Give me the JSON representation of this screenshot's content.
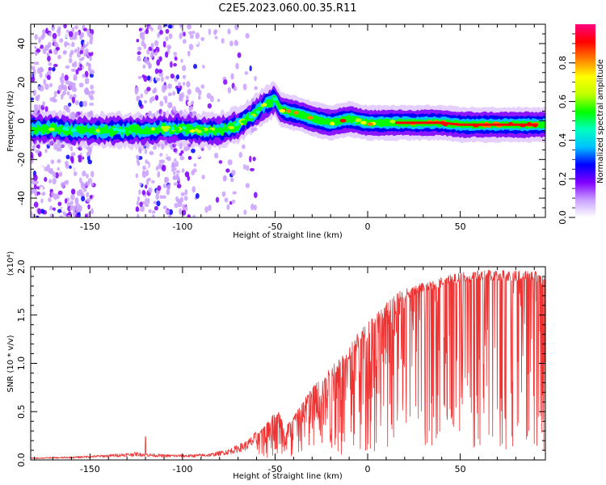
{
  "title": "C2E5.2023.060.00.35.R11",
  "chart_data": [
    {
      "type": "heatmap",
      "xlabel": "Height of straight line (km)",
      "ylabel": "Frequency (Hz)",
      "xlim": [
        -182,
        96
      ],
      "ylim": [
        -50,
        50
      ],
      "x_ticks": [
        -150,
        -100,
        -50,
        0,
        50
      ],
      "y_ticks": [
        -40,
        -20,
        0,
        20,
        40
      ],
      "ridge": {
        "x": [
          -182,
          -170,
          -160,
          -150,
          -140,
          -130,
          -120,
          -110,
          -100,
          -90,
          -80,
          -70,
          -62,
          -56,
          -50,
          -47,
          -44,
          -40,
          -35,
          -30,
          -25,
          -20,
          -15,
          -10,
          -5,
          0,
          10,
          20,
          30,
          40,
          50,
          60,
          70,
          80,
          90,
          96
        ],
        "y": [
          -4,
          -4,
          -5,
          -5,
          -5,
          -5,
          -5,
          -4,
          -4,
          -5,
          -5,
          -2,
          3,
          8,
          11,
          6,
          5,
          4,
          3,
          1,
          0,
          -1,
          0,
          1,
          0,
          -1,
          -1,
          -1,
          -1,
          -1,
          -2,
          -2,
          -2,
          -2,
          -2,
          -2
        ]
      },
      "colorbar": {
        "label": "Normalized spectral amplitude",
        "range": [
          0,
          1
        ],
        "ticks": [
          "0.0",
          "0.2",
          "0.4",
          "0.6",
          "0.8"
        ],
        "colors": [
          "#ffffff",
          "#c9a0ff",
          "#8000ff",
          "#0000ff",
          "#00c0ff",
          "#00ffc0",
          "#00ff00",
          "#c0ff00",
          "#ffff00",
          "#ff8000",
          "#ff0000",
          "#ff0080"
        ]
      }
    },
    {
      "type": "line",
      "xlabel": "Height of straight line (km)",
      "ylabel": "SNR (10 * v/v)",
      "y_multiplier": "(x10⁴)",
      "xlim": [
        -182,
        96
      ],
      "ylim": [
        0,
        2.0
      ],
      "x_ticks": [
        -150,
        -100,
        -50,
        0,
        50
      ],
      "y_ticks": [
        "0.0",
        "0.5",
        "1.0",
        "1.5",
        "2.0"
      ],
      "color": "#ee3333",
      "envelope": {
        "x": [
          -182,
          -160,
          -140,
          -125,
          -110,
          -95,
          -85,
          -75,
          -65,
          -58,
          -52,
          -48,
          -45,
          -40,
          -35,
          -30,
          -25,
          -20,
          -15,
          -10,
          -5,
          0,
          5,
          10,
          15,
          20,
          30,
          40,
          50,
          60,
          70,
          80,
          90,
          96
        ],
        "y": [
          0.02,
          0.03,
          0.05,
          0.07,
          0.05,
          0.05,
          0.06,
          0.1,
          0.18,
          0.3,
          0.45,
          0.5,
          0.32,
          0.45,
          0.6,
          0.75,
          0.85,
          0.95,
          1.05,
          1.15,
          1.3,
          1.4,
          1.5,
          1.6,
          1.68,
          1.75,
          1.82,
          1.88,
          1.92,
          1.95,
          1.95,
          1.95,
          1.94,
          1.9
        ]
      },
      "peak": {
        "x": -120,
        "y": 0.24
      }
    }
  ]
}
